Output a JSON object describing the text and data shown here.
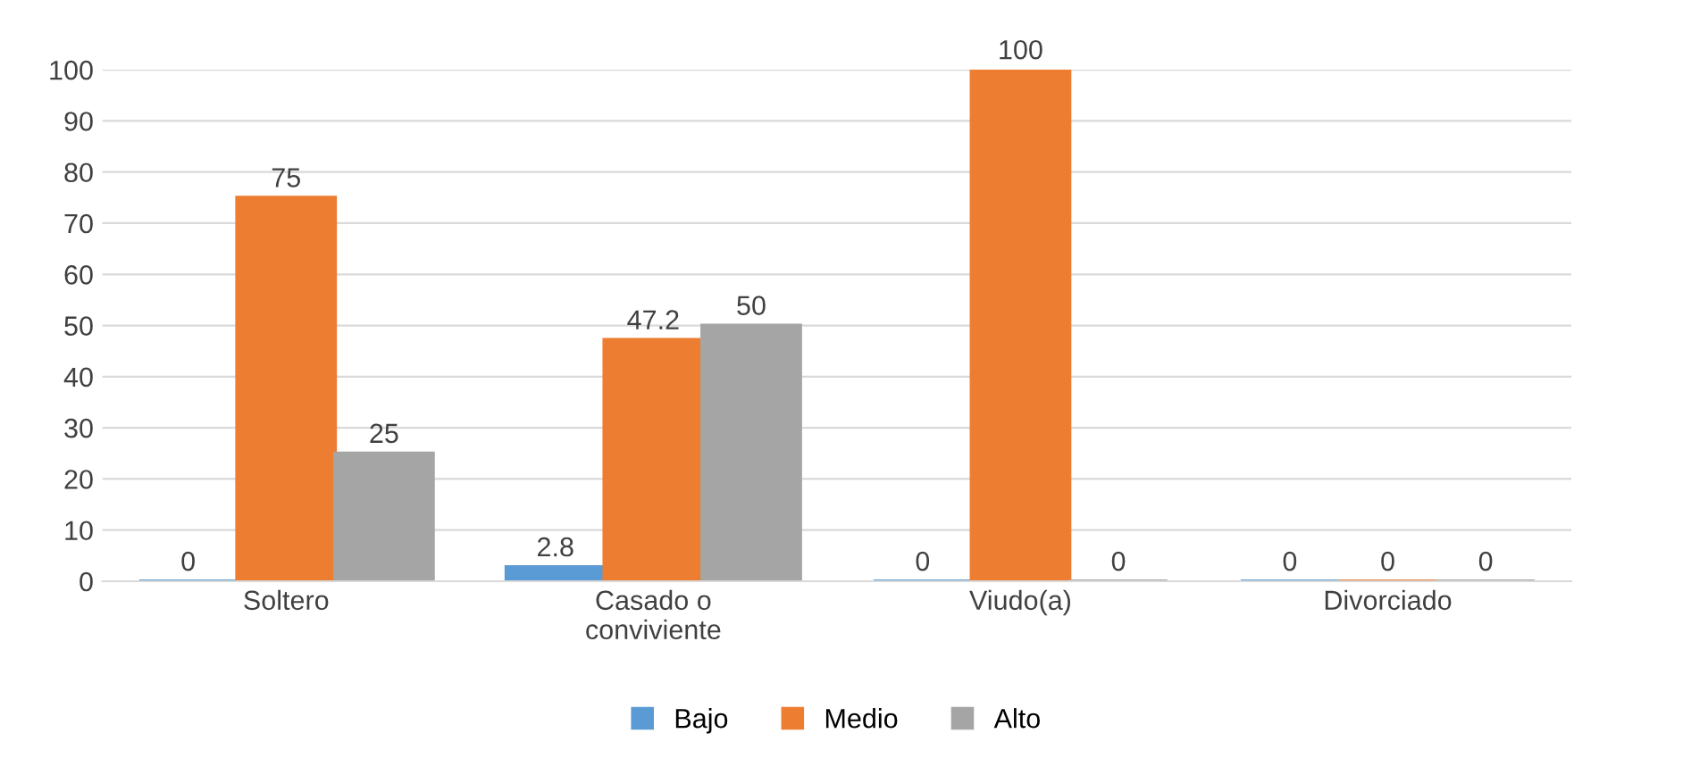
{
  "chart_data": {
    "type": "bar",
    "categories": [
      "Soltero",
      "Casado o\nconviviente",
      "Viudo(a)",
      "Divorciado"
    ],
    "series": [
      {
        "name": "Bajo",
        "color": "#5b9bd5",
        "values": [
          0,
          2.8,
          0,
          0
        ]
      },
      {
        "name": "Medio",
        "color": "#ed7d31",
        "values": [
          75,
          47.2,
          100,
          0
        ]
      },
      {
        "name": "Alto",
        "color": "#a5a5a5",
        "values": [
          25,
          50,
          0,
          0
        ]
      }
    ],
    "ylim": [
      0,
      100
    ],
    "yticks": [
      0,
      10,
      20,
      30,
      40,
      50,
      60,
      70,
      80,
      90,
      100
    ],
    "grid": "y",
    "legend": "bottom",
    "data_labels": true
  }
}
